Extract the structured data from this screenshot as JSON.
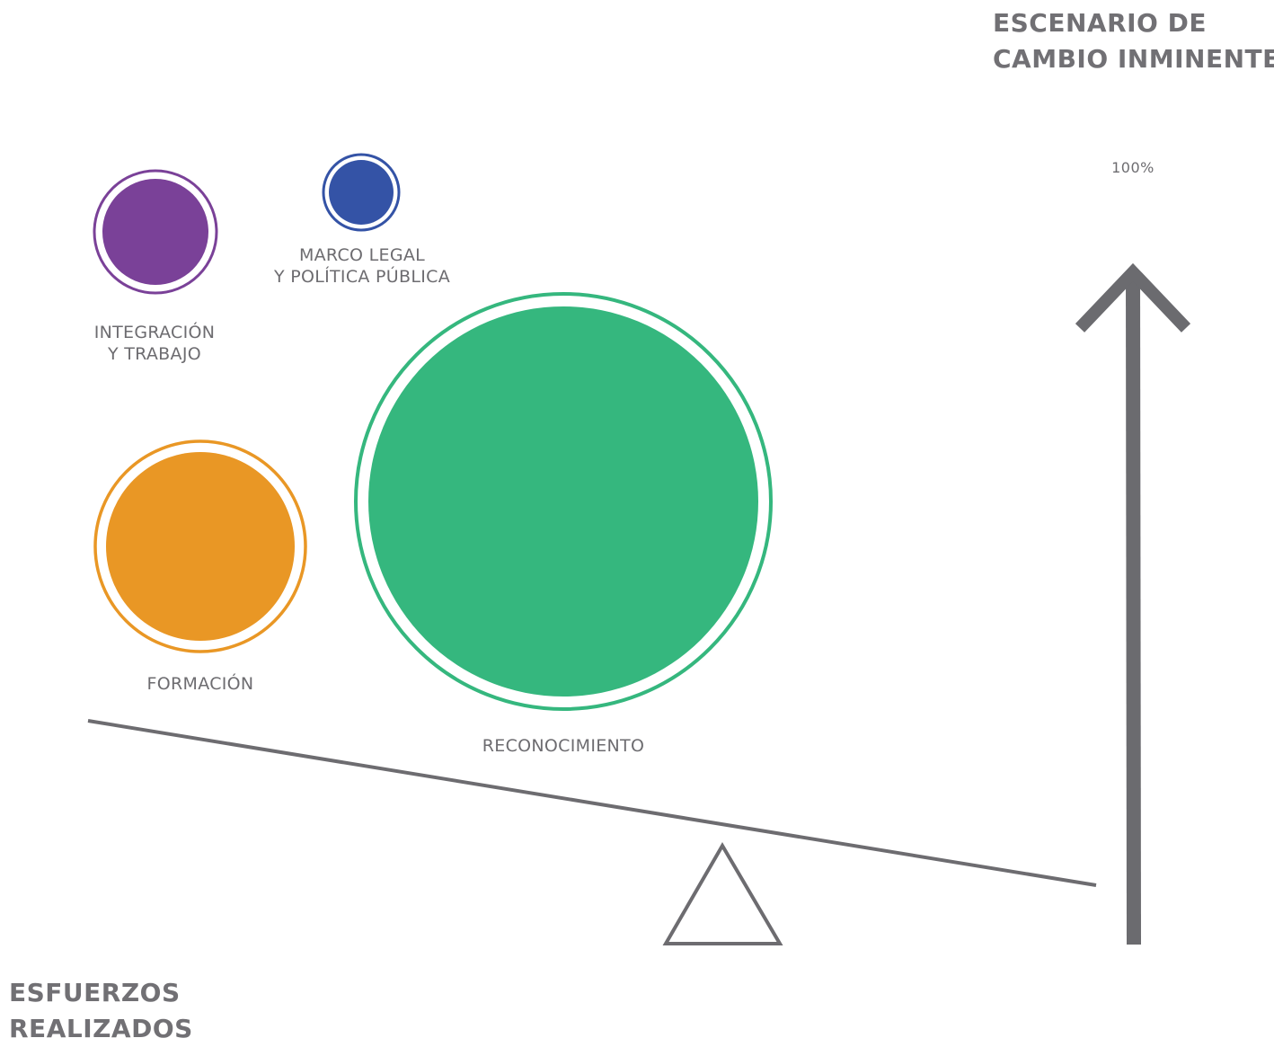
{
  "titles": {
    "top_line1": "ESCENARIO DE",
    "top_line2": "CAMBIO INMINENTE",
    "bottom_line1": "ESFUERZOS",
    "bottom_line2": "REALIZADOS"
  },
  "scale_label": "100%",
  "circles": [
    {
      "id": "integracion",
      "lines": [
        "INTEGRACIÓN",
        "Y TRABAJO"
      ],
      "color": "#7a4198"
    },
    {
      "id": "marco",
      "lines": [
        "MARCO LEGAL",
        "Y POLÍTICA PÚBLICA"
      ],
      "color": "#3453a6"
    },
    {
      "id": "formacion",
      "lines": [
        "FORMACIÓN"
      ],
      "color": "#e99725"
    },
    {
      "id": "reconocimiento",
      "lines": [
        "RECONOCIMIENTO"
      ],
      "color": "#35b77e"
    }
  ],
  "colors": {
    "text": "#6d6c70",
    "lines": "#6d6c70",
    "arrow": "#6b6b6f"
  }
}
